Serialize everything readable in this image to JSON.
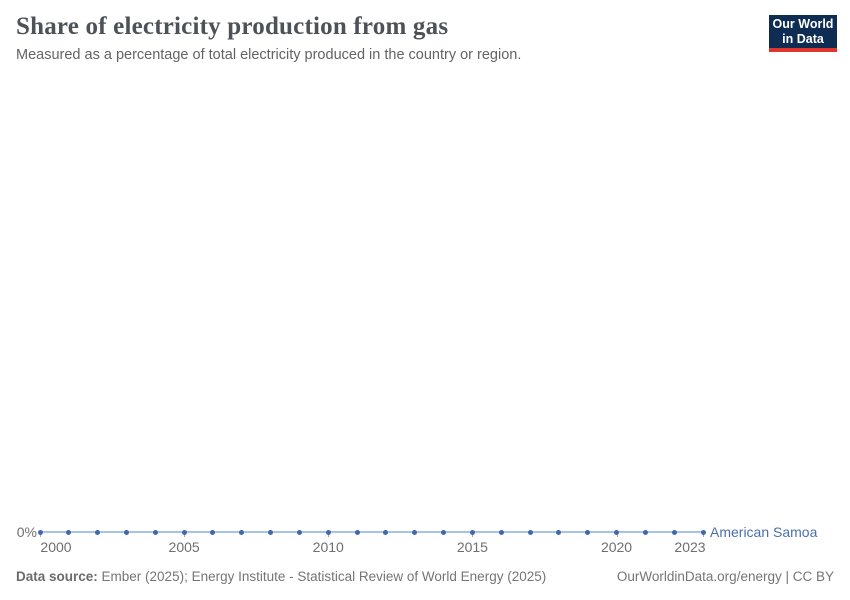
{
  "header": {
    "title": "Share of electricity production from gas",
    "subtitle": "Measured as a percentage of total electricity produced in the country or region.",
    "logo": {
      "line1": "Our World",
      "line2": "in Data",
      "bg_color": "#0f2d52",
      "bar_color": "#e0342f"
    }
  },
  "chart_data": {
    "type": "line",
    "title": "Share of electricity production from gas",
    "xlabel": "",
    "ylabel": "",
    "grid": false,
    "legend": "line-end-label",
    "x": [
      2000,
      2001,
      2002,
      2003,
      2004,
      2005,
      2006,
      2007,
      2008,
      2009,
      2010,
      2011,
      2012,
      2013,
      2014,
      2015,
      2016,
      2017,
      2018,
      2019,
      2020,
      2021,
      2022,
      2023
    ],
    "series": [
      {
        "name": "American Samoa",
        "values": [
          0,
          0,
          0,
          0,
          0,
          0,
          0,
          0,
          0,
          0,
          0,
          0,
          0,
          0,
          0,
          0,
          0,
          0,
          0,
          0,
          0,
          0,
          0,
          0
        ],
        "line_color": "#a9c3e6",
        "marker_color": "#4168ae",
        "label_color": "#4a6fae"
      }
    ],
    "x_ticks": [
      2000,
      2005,
      2010,
      2015,
      2020,
      2023
    ],
    "y_ticks": [
      {
        "value": 0,
        "label": "0%"
      }
    ],
    "axis_label_color": "#6f6f6f",
    "tick_color": "#a5a5a5"
  },
  "footer": {
    "source_label": "Data source:",
    "source_text": " Ember (2025); Energy Institute - Statistical Review of World Energy (2025)",
    "link_text": "OurWorldinData.org/energy | CC BY"
  }
}
